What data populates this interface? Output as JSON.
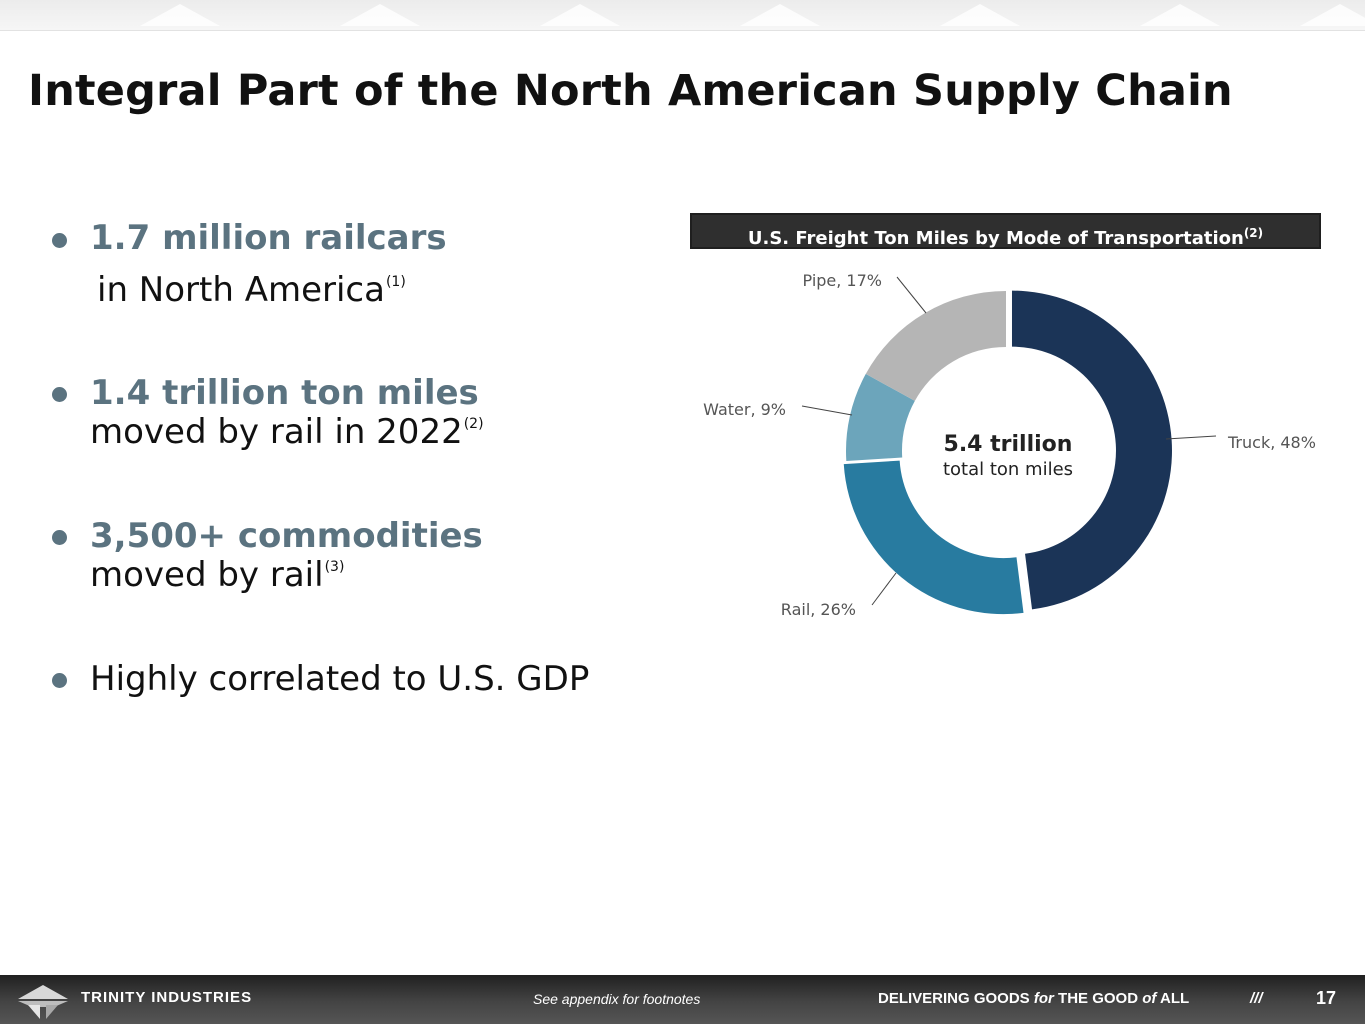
{
  "title": "Integral Part of the North American Supply Chain",
  "bullets": [
    {
      "head": "1.7 million railcars",
      "sub": "in North America",
      "sup": "(1)"
    },
    {
      "head": "1.4 trillion ton miles",
      "sub": "moved by rail in 2022",
      "sup": "(2)"
    },
    {
      "head": "3,500+ commodities",
      "sub": "moved by rail",
      "sup": "(3)"
    },
    {
      "head": "",
      "sub": "Highly correlated to U.S. GDP",
      "sup": ""
    }
  ],
  "chart": {
    "title": "U.S. Freight Ton Miles by Mode of Transportation",
    "title_sup": "(2)",
    "center_value": "5.4 trillion",
    "center_label": "total ton miles"
  },
  "chart_data": {
    "type": "pie",
    "title": "U.S. Freight Ton Miles by Mode of Transportation",
    "categories": [
      "Truck",
      "Rail",
      "Water",
      "Pipe"
    ],
    "values": [
      48,
      26,
      9,
      17
    ],
    "unit": "%",
    "labels": [
      "Truck, 48%",
      "Rail, 26%",
      "Water, 9%",
      "Pipe, 17%"
    ],
    "colors": [
      "#1b3457",
      "#287ba0",
      "#6ca5bb",
      "#b5b5b5"
    ],
    "donut": true,
    "center_text": [
      "5.4 trillion",
      "total ton miles"
    ]
  },
  "footer": {
    "brand": "TRINITY INDUSTRIES",
    "note": "See appendix for footnotes",
    "tagline_parts": [
      "DELIVERING GOODS ",
      "for",
      " THE GOOD ",
      "of",
      " ALL"
    ],
    "slashes": "///",
    "page_number": "17"
  },
  "colors": {
    "accent": "#5b7380",
    "title_bar": "#2f2f2f",
    "footer": "#333333"
  }
}
